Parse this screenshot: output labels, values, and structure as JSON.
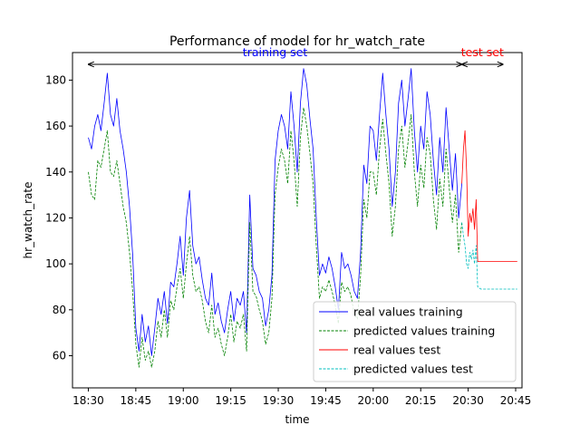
{
  "chart_data": {
    "type": "line",
    "title": "Performance of model for hr_watch_rate",
    "xlabel": "time",
    "ylabel": "hr_watch_rate",
    "x_ticks": [
      "18:30",
      "18:45",
      "19:00",
      "19:15",
      "19:30",
      "19:45",
      "20:00",
      "20:15",
      "20:30",
      "20:45"
    ],
    "y_ticks": [
      60,
      80,
      100,
      120,
      140,
      160,
      180
    ],
    "xlim": [
      "18:25",
      "20:47"
    ],
    "ylim": [
      46,
      192
    ],
    "x_unit": "minutes since 18:30",
    "annotations": [
      {
        "text": "training set",
        "color": "#0000ff",
        "from": "18:30",
        "to": "20:28"
      },
      {
        "text": "test set",
        "color": "#ff0000",
        "from": "20:28",
        "to": "20:41"
      }
    ],
    "legend": {
      "placement": "lower-right"
    },
    "series": [
      {
        "name": "real values training",
        "color": "#0000ff",
        "style": "solid",
        "x": [
          0,
          1,
          2,
          3,
          4,
          5,
          6,
          7,
          8,
          9,
          10,
          11,
          12,
          13,
          14,
          15,
          16,
          17,
          18,
          19,
          20,
          21,
          22,
          23,
          24,
          25,
          26,
          27,
          28,
          29,
          30,
          31,
          32,
          33,
          34,
          35,
          36,
          37,
          38,
          39,
          40,
          41,
          42,
          43,
          44,
          45,
          46,
          47,
          48,
          49,
          50,
          51,
          52,
          53,
          54,
          55,
          56,
          57,
          58,
          59,
          60,
          61,
          62,
          63,
          64,
          65,
          66,
          67,
          68,
          69,
          70,
          71,
          72,
          73,
          74,
          75,
          76,
          77,
          78,
          79,
          80,
          81,
          82,
          83,
          84,
          85,
          86,
          87,
          88,
          89,
          90,
          91,
          92,
          93,
          94,
          95,
          96,
          97,
          98,
          99,
          100,
          101,
          102,
          103,
          104,
          105,
          106,
          107,
          108,
          109,
          110,
          111,
          112,
          113,
          114,
          115,
          116,
          117,
          118
        ],
        "values": [
          155,
          150,
          160,
          165,
          158,
          170,
          183,
          165,
          160,
          172,
          158,
          150,
          140,
          125,
          104,
          72,
          62,
          78,
          66,
          73,
          60,
          72,
          85,
          78,
          88,
          74,
          92,
          90,
          100,
          112,
          95,
          120,
          132,
          108,
          100,
          103,
          93,
          85,
          82,
          96,
          78,
          83,
          75,
          70,
          80,
          88,
          75,
          85,
          82,
          88,
          70,
          130,
          98,
          95,
          88,
          85,
          73,
          80,
          95,
          145,
          158,
          165,
          160,
          150,
          175,
          160,
          140,
          170,
          185,
          178,
          163,
          150,
          120,
          95,
          100,
          96,
          103,
          98,
          90,
          80,
          105,
          98,
          100,
          95,
          88,
          85,
          105,
          143,
          135,
          160,
          158,
          145,
          165,
          183,
          165,
          150,
          125,
          140,
          170,
          180,
          160,
          172,
          185,
          158,
          140,
          160,
          150,
          175,
          165,
          145,
          130,
          155,
          140,
          168,
          150,
          132,
          148,
          120,
          135
        ]
      },
      {
        "name": "predicted values training",
        "color": "#008000",
        "style": "dashed",
        "x": [
          0,
          1,
          2,
          3,
          4,
          5,
          6,
          7,
          8,
          9,
          10,
          11,
          12,
          13,
          14,
          15,
          16,
          17,
          18,
          19,
          20,
          21,
          22,
          23,
          24,
          25,
          26,
          27,
          28,
          29,
          30,
          31,
          32,
          33,
          34,
          35,
          36,
          37,
          38,
          39,
          40,
          41,
          42,
          43,
          44,
          45,
          46,
          47,
          48,
          49,
          50,
          51,
          52,
          53,
          54,
          55,
          56,
          57,
          58,
          59,
          60,
          61,
          62,
          63,
          64,
          65,
          66,
          67,
          68,
          69,
          70,
          71,
          72,
          73,
          74,
          75,
          76,
          77,
          78,
          79,
          80,
          81,
          82,
          83,
          84,
          85,
          86,
          87,
          88,
          89,
          90,
          91,
          92,
          93,
          94,
          95,
          96,
          97,
          98,
          99,
          100,
          101,
          102,
          103,
          104,
          105,
          106,
          107,
          108,
          109,
          110,
          111,
          112,
          113,
          114,
          115,
          116,
          117,
          118
        ],
        "values": [
          140,
          130,
          128,
          145,
          142,
          150,
          158,
          140,
          138,
          145,
          135,
          125,
          118,
          105,
          88,
          65,
          55,
          68,
          58,
          62,
          55,
          62,
          75,
          68,
          80,
          68,
          84,
          80,
          90,
          98,
          85,
          100,
          112,
          95,
          88,
          90,
          84,
          75,
          70,
          82,
          68,
          72,
          65,
          60,
          68,
          78,
          66,
          75,
          72,
          78,
          62,
          118,
          88,
          86,
          80,
          75,
          65,
          70,
          85,
          130,
          142,
          150,
          145,
          135,
          158,
          145,
          125,
          155,
          168,
          160,
          148,
          135,
          108,
          85,
          90,
          88,
          93,
          88,
          82,
          74,
          92,
          88,
          90,
          86,
          78,
          76,
          95,
          128,
          120,
          140,
          140,
          130,
          150,
          163,
          148,
          135,
          112,
          125,
          150,
          160,
          142,
          153,
          165,
          140,
          125,
          143,
          133,
          155,
          148,
          128,
          115,
          137,
          125,
          150,
          133,
          118,
          130,
          105,
          118
        ]
      },
      {
        "name": "real values test",
        "color": "#ff0000",
        "style": "solid",
        "x": [
          118,
          118.5,
          119,
          119.5,
          120,
          120.5,
          121,
          121.5,
          122,
          122.5,
          123,
          124,
          126,
          128,
          130,
          132,
          134,
          135.5
        ],
        "values": [
          135,
          150,
          158,
          140,
          112,
          122,
          118,
          124,
          115,
          128,
          101,
          101,
          101,
          101,
          101,
          101,
          101,
          101
        ]
      },
      {
        "name": "predicted values test",
        "color": "#00bfbf",
        "style": "dashed",
        "x": [
          118,
          118.5,
          119,
          119.5,
          120,
          120.5,
          121,
          121.5,
          122,
          122.5,
          123,
          124,
          126,
          128,
          130,
          132,
          134,
          135.5
        ],
        "values": [
          118,
          112,
          108,
          100,
          98,
          105,
          102,
          106,
          100,
          108,
          90,
          89,
          89,
          89,
          89,
          89,
          89,
          89
        ]
      }
    ]
  }
}
